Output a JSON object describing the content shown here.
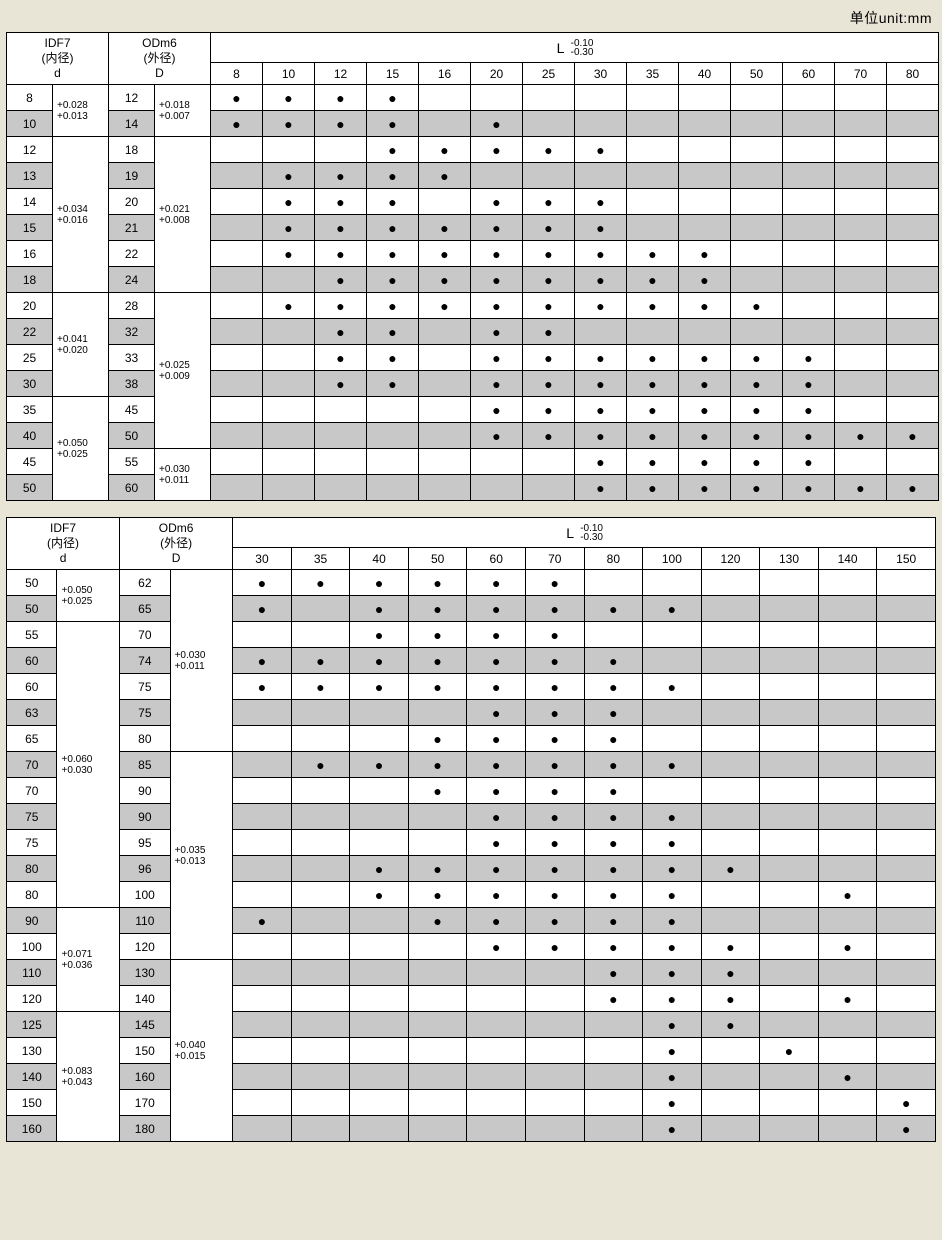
{
  "unit_label": "单位unit:mm",
  "headers": {
    "idf7_line1": "IDF7",
    "idf7_line2": "(内径)",
    "idf7_line3": "d",
    "odm6_line1": "ODm6",
    "odm6_line2": "(外径)",
    "odm6_line3": "D",
    "L_label": "L",
    "L_upper": "-0.10",
    "L_lower": "-0.30"
  },
  "table1": {
    "L_cols": [
      "8",
      "10",
      "12",
      "15",
      "16",
      "20",
      "25",
      "30",
      "35",
      "40",
      "50",
      "60",
      "70",
      "80"
    ],
    "d_tol_groups": [
      {
        "tol_upper": "+0.028",
        "tol_lower": "+0.013",
        "rows": [
          "8",
          "10"
        ]
      },
      {
        "tol_upper": "+0.034",
        "tol_lower": "+0.016",
        "rows": [
          "12",
          "13",
          "14",
          "15",
          "16",
          "18"
        ]
      },
      {
        "tol_upper": "+0.041",
        "tol_lower": "+0.020",
        "rows": [
          "20",
          "22",
          "25",
          "30"
        ]
      },
      {
        "tol_upper": "+0.050",
        "tol_lower": "+0.025",
        "rows": [
          "35",
          "40",
          "45",
          "50"
        ]
      }
    ],
    "D_vals": [
      "12",
      "14",
      "18",
      "19",
      "20",
      "21",
      "22",
      "24",
      "28",
      "32",
      "33",
      "38",
      "45",
      "50",
      "55",
      "60"
    ],
    "D_tol_groups": [
      {
        "tol_upper": "+0.018",
        "tol_lower": "+0.007",
        "span": 2
      },
      {
        "tol_upper": "+0.021",
        "tol_lower": "+0.008",
        "span": 6
      },
      {
        "tol_upper": "+0.025",
        "tol_lower": "+0.009",
        "span": 6
      },
      {
        "tol_upper": "+0.030",
        "tol_lower": "+0.011",
        "span": 2
      }
    ],
    "dots": [
      [
        1,
        1,
        1,
        1,
        0,
        0,
        0,
        0,
        0,
        0,
        0,
        0,
        0,
        0
      ],
      [
        1,
        1,
        1,
        1,
        0,
        1,
        0,
        0,
        0,
        0,
        0,
        0,
        0,
        0
      ],
      [
        0,
        0,
        0,
        1,
        1,
        1,
        1,
        1,
        0,
        0,
        0,
        0,
        0,
        0
      ],
      [
        0,
        1,
        1,
        1,
        1,
        0,
        0,
        0,
        0,
        0,
        0,
        0,
        0,
        0
      ],
      [
        0,
        1,
        1,
        1,
        0,
        1,
        1,
        1,
        0,
        0,
        0,
        0,
        0,
        0
      ],
      [
        0,
        1,
        1,
        1,
        1,
        1,
        1,
        1,
        0,
        0,
        0,
        0,
        0,
        0
      ],
      [
        0,
        1,
        1,
        1,
        1,
        1,
        1,
        1,
        1,
        1,
        0,
        0,
        0,
        0
      ],
      [
        0,
        0,
        1,
        1,
        1,
        1,
        1,
        1,
        1,
        1,
        0,
        0,
        0,
        0
      ],
      [
        0,
        1,
        1,
        1,
        1,
        1,
        1,
        1,
        1,
        1,
        1,
        0,
        0,
        0
      ],
      [
        0,
        0,
        1,
        1,
        0,
        1,
        1,
        0,
        0,
        0,
        0,
        0,
        0,
        0
      ],
      [
        0,
        0,
        1,
        1,
        0,
        1,
        1,
        1,
        1,
        1,
        1,
        1,
        0,
        0
      ],
      [
        0,
        0,
        1,
        1,
        0,
        1,
        1,
        1,
        1,
        1,
        1,
        1,
        0,
        0
      ],
      [
        0,
        0,
        0,
        0,
        0,
        1,
        1,
        1,
        1,
        1,
        1,
        1,
        0,
        0
      ],
      [
        0,
        0,
        0,
        0,
        0,
        1,
        1,
        1,
        1,
        1,
        1,
        1,
        1,
        1
      ],
      [
        0,
        0,
        0,
        0,
        0,
        0,
        0,
        1,
        1,
        1,
        1,
        1,
        0,
        0
      ],
      [
        0,
        0,
        0,
        0,
        0,
        0,
        0,
        1,
        1,
        1,
        1,
        1,
        1,
        1
      ]
    ],
    "row_grey": [
      0,
      1,
      0,
      1,
      0,
      1,
      0,
      1,
      0,
      1,
      0,
      1,
      0,
      1,
      0,
      1
    ],
    "col_d_w": 46,
    "col_dtol_w": 56,
    "col_D_w": 46,
    "col_Dtol_w": 56,
    "col_L_w": 52
  },
  "table2": {
    "L_cols": [
      "30",
      "35",
      "40",
      "50",
      "60",
      "70",
      "80",
      "100",
      "120",
      "130",
      "140",
      "150"
    ],
    "d_tol_groups": [
      {
        "tol_upper": "+0.050",
        "tol_lower": "+0.025",
        "rows": [
          "50",
          "50"
        ]
      },
      {
        "tol_upper": "+0.060",
        "tol_lower": "+0.030",
        "rows": [
          "55",
          "60",
          "60",
          "63",
          "65",
          "70",
          "70",
          "75",
          "75",
          "80",
          "80"
        ]
      },
      {
        "tol_upper": "+0.071",
        "tol_lower": "+0.036",
        "rows": [
          "90",
          "100",
          "110",
          "120"
        ]
      },
      {
        "tol_upper": "+0.083",
        "tol_lower": "+0.043",
        "rows": [
          "125",
          "130",
          "140",
          "150",
          "160"
        ]
      }
    ],
    "D_vals": [
      "62",
      "65",
      "70",
      "74",
      "75",
      "75",
      "80",
      "85",
      "90",
      "90",
      "95",
      "96",
      "100",
      "110",
      "120",
      "130",
      "140",
      "145",
      "150",
      "160",
      "170",
      "180"
    ],
    "D_tol_groups": [
      {
        "tol_upper": "+0.030",
        "tol_lower": "+0.011",
        "span": 7
      },
      {
        "tol_upper": "+0.035",
        "tol_lower": "+0.013",
        "span": 8
      },
      {
        "tol_upper": "+0.040",
        "tol_lower": "+0.015",
        "span": 7
      }
    ],
    "dots": [
      [
        1,
        1,
        1,
        1,
        1,
        1,
        0,
        0,
        0,
        0,
        0,
        0
      ],
      [
        1,
        0,
        1,
        1,
        1,
        1,
        1,
        1,
        0,
        0,
        0,
        0
      ],
      [
        0,
        0,
        1,
        1,
        1,
        1,
        0,
        0,
        0,
        0,
        0,
        0
      ],
      [
        1,
        1,
        1,
        1,
        1,
        1,
        1,
        0,
        0,
        0,
        0,
        0
      ],
      [
        1,
        1,
        1,
        1,
        1,
        1,
        1,
        1,
        0,
        0,
        0,
        0
      ],
      [
        0,
        0,
        0,
        0,
        1,
        1,
        1,
        0,
        0,
        0,
        0,
        0
      ],
      [
        0,
        0,
        0,
        1,
        1,
        1,
        1,
        0,
        0,
        0,
        0,
        0
      ],
      [
        0,
        1,
        1,
        1,
        1,
        1,
        1,
        1,
        0,
        0,
        0,
        0
      ],
      [
        0,
        0,
        0,
        1,
        1,
        1,
        1,
        0,
        0,
        0,
        0,
        0
      ],
      [
        0,
        0,
        0,
        0,
        1,
        1,
        1,
        1,
        0,
        0,
        0,
        0
      ],
      [
        0,
        0,
        0,
        0,
        1,
        1,
        1,
        1,
        0,
        0,
        0,
        0
      ],
      [
        0,
        0,
        1,
        1,
        1,
        1,
        1,
        1,
        1,
        0,
        0,
        0
      ],
      [
        0,
        0,
        1,
        1,
        1,
        1,
        1,
        1,
        0,
        0,
        1,
        0
      ],
      [
        1,
        0,
        0,
        1,
        1,
        1,
        1,
        1,
        0,
        0,
        0,
        0
      ],
      [
        0,
        0,
        0,
        0,
        1,
        1,
        1,
        1,
        1,
        0,
        1,
        0
      ],
      [
        0,
        0,
        0,
        0,
        0,
        0,
        1,
        1,
        1,
        0,
        0,
        0
      ],
      [
        0,
        0,
        0,
        0,
        0,
        0,
        1,
        1,
        1,
        0,
        1,
        0
      ],
      [
        0,
        0,
        0,
        0,
        0,
        0,
        0,
        1,
        1,
        0,
        0,
        0
      ],
      [
        0,
        0,
        0,
        0,
        0,
        0,
        0,
        1,
        0,
        1,
        0,
        0
      ],
      [
        0,
        0,
        0,
        0,
        0,
        0,
        0,
        1,
        0,
        0,
        1,
        0
      ],
      [
        0,
        0,
        0,
        0,
        0,
        0,
        0,
        1,
        0,
        0,
        0,
        1
      ],
      [
        0,
        0,
        0,
        0,
        0,
        0,
        0,
        1,
        0,
        0,
        0,
        1
      ]
    ],
    "row_grey": [
      0,
      1,
      0,
      1,
      0,
      1,
      0,
      1,
      0,
      1,
      0,
      1,
      0,
      1,
      0,
      1,
      0,
      1,
      0,
      1,
      0,
      1
    ],
    "col_d_w": 50,
    "col_dtol_w": 62,
    "col_D_w": 50,
    "col_Dtol_w": 62,
    "col_L_w": 58
  },
  "colors": {
    "grey": "#c8c8c8",
    "bg": "#e8e5d7",
    "border": "#000000"
  }
}
